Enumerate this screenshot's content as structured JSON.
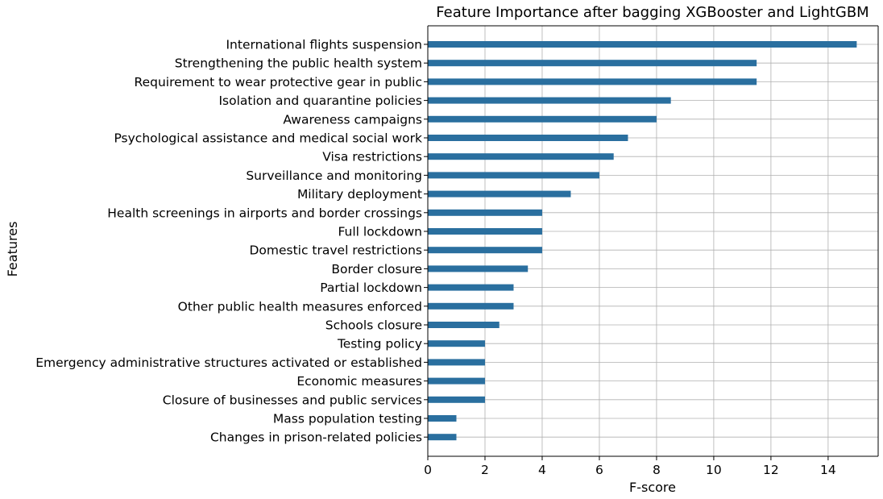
{
  "chart_data": {
    "type": "bar",
    "orientation": "horizontal",
    "title": "Feature Importance after bagging XGBooster and LightGBM",
    "xlabel": "F-score",
    "ylabel": "Features",
    "xlim": [
      0,
      15.75
    ],
    "xticks": [
      0,
      2,
      4,
      6,
      8,
      10,
      12,
      14
    ],
    "grid": true,
    "bar_color": "#2a6f9f",
    "grid_color": "#b0b0b0",
    "categories": [
      "International flights suspension",
      "Strengthening the public health system",
      "Requirement to wear protective gear in public",
      "Isolation and quarantine policies",
      "Awareness campaigns",
      "Psychological assistance and medical social work",
      "Visa restrictions",
      "Surveillance and monitoring",
      "Military deployment",
      "Health screenings in airports and border crossings",
      "Full lockdown",
      "Domestic travel restrictions",
      "Border closure",
      "Partial lockdown",
      "Other public health measures enforced",
      "Schools closure",
      "Testing policy",
      "Emergency administrative structures activated or established",
      "Economic measures",
      "Closure of businesses and public services",
      "Mass population testing",
      "Changes in prison-related policies"
    ],
    "values": [
      15,
      11.5,
      11.5,
      8.5,
      8,
      7,
      6.5,
      6,
      5,
      4,
      4,
      4,
      3.5,
      3,
      3,
      2.5,
      2,
      2,
      2,
      2,
      1,
      1
    ]
  }
}
